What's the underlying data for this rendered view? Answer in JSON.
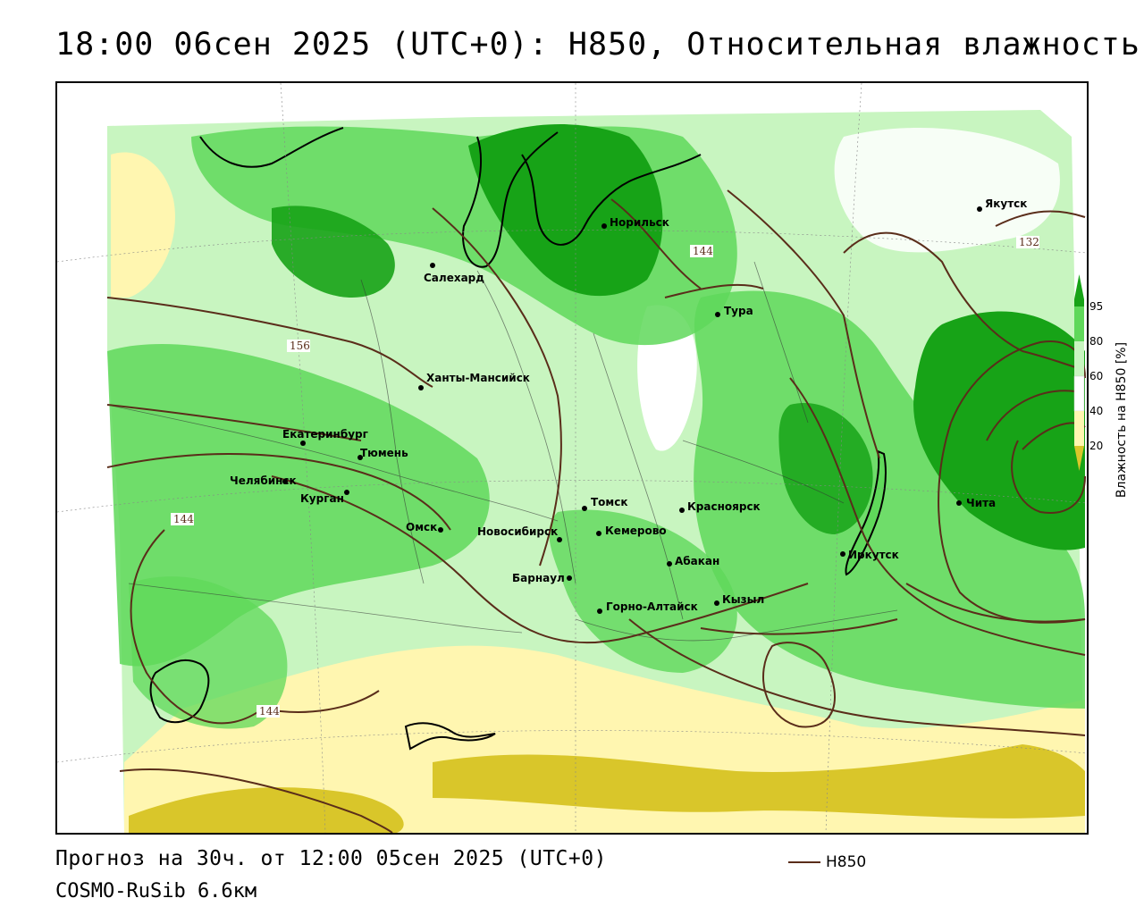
{
  "title": "18:00 06сен 2025 (UTC+0): H850, Относительная влажность",
  "forecast_line": "Прогноз на 30ч. от 12:00 05сен 2025 (UTC+0)",
  "model_line": "COSMO-RuSib 6.6км",
  "contour_legend": {
    "label": "H850",
    "color": "#5a2d1a"
  },
  "colorbar": {
    "title": "Влажность на H850 [%]",
    "ticks": [
      "95",
      "80",
      "60",
      "40",
      "20"
    ],
    "colors": {
      "very_dry": "#d9c62a",
      "dry": "#fff6b0",
      "mid": "#ffffff",
      "moist": "#c8f5c0",
      "wet": "#5fd85a",
      "very_wet": "#17a317"
    }
  },
  "cities": [
    {
      "name": "Якутск"
    },
    {
      "name": "Норильск"
    },
    {
      "name": "Салехард"
    },
    {
      "name": "Тура"
    },
    {
      "name": "Ханты-Мансийск"
    },
    {
      "name": "Екатеринбург"
    },
    {
      "name": "Тюмень"
    },
    {
      "name": "Челябинск"
    },
    {
      "name": "Курган"
    },
    {
      "name": "Омск"
    },
    {
      "name": "Новосибирск"
    },
    {
      "name": "Томск"
    },
    {
      "name": "Кемерово"
    },
    {
      "name": "Красноярск"
    },
    {
      "name": "Барнаул"
    },
    {
      "name": "Абакан"
    },
    {
      "name": "Горно-Алтайск"
    },
    {
      "name": "Кызыл"
    },
    {
      "name": "Иркутск"
    },
    {
      "name": "Чита"
    }
  ],
  "contour_labels": [
    "144",
    "132",
    "156",
    "144",
    "144"
  ]
}
